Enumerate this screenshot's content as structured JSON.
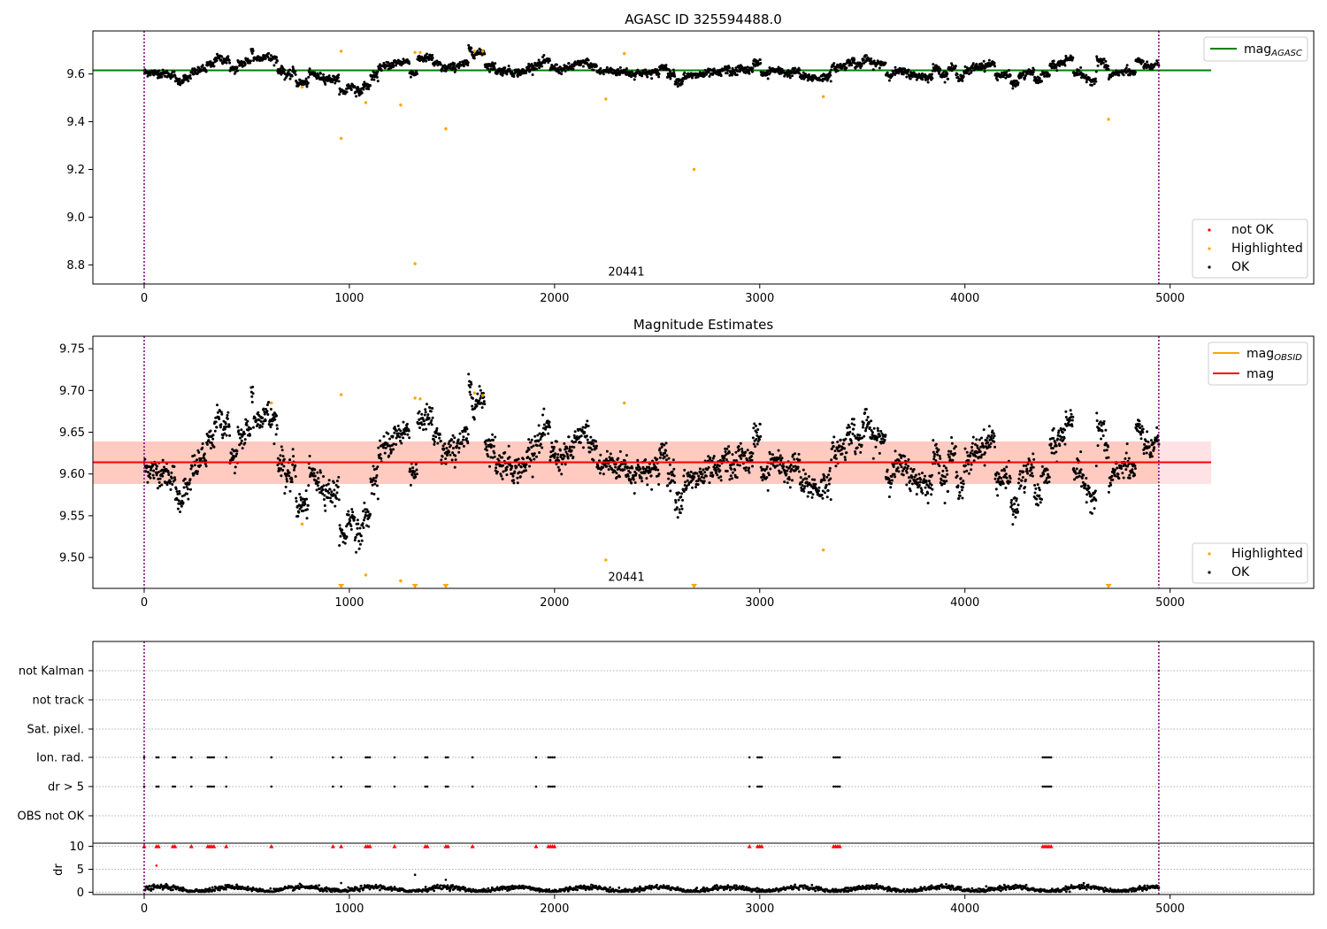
{
  "chart_data": [
    {
      "type": "scatter",
      "title": "AGASC ID 325594488.0",
      "xlim": [
        -250,
        5700
      ],
      "ylim": [
        8.72,
        9.78
      ],
      "xticks": [
        0,
        1000,
        2000,
        3000,
        4000,
        5000
      ],
      "yticks": [
        8.8,
        9.0,
        9.2,
        9.4,
        9.6
      ],
      "annotation": {
        "text": "20441",
        "x": 2350,
        "y": 8.77
      },
      "vlines": [
        0,
        4945
      ],
      "mag_agasc": {
        "value": 9.615,
        "x_range": [
          -250,
          5200
        ]
      },
      "legend_upper": [
        {
          "label": "mag",
          "subscript": "AGASC",
          "color": "#008000"
        }
      ],
      "legend_lower": [
        {
          "label": "not OK",
          "color": "#ff0000"
        },
        {
          "label": "Highlighted",
          "color": "#ffa500"
        },
        {
          "label": "OK",
          "color": "#000000"
        }
      ],
      "highlighted_points": [
        {
          "x": 960,
          "y": 9.695
        },
        {
          "x": 960,
          "y": 9.33
        },
        {
          "x": 1080,
          "y": 9.48
        },
        {
          "x": 1250,
          "y": 9.47
        },
        {
          "x": 1320,
          "y": 8.805
        },
        {
          "x": 1320,
          "y": 9.69
        },
        {
          "x": 1345,
          "y": 9.69
        },
        {
          "x": 1470,
          "y": 9.37
        },
        {
          "x": 1610,
          "y": 9.695
        },
        {
          "x": 1650,
          "y": 9.695
        },
        {
          "x": 2250,
          "y": 9.495
        },
        {
          "x": 2340,
          "y": 9.685
        },
        {
          "x": 2680,
          "y": 9.2
        },
        {
          "x": 3310,
          "y": 9.505
        },
        {
          "x": 4700,
          "y": 9.41
        },
        {
          "x": 770,
          "y": 9.545
        }
      ]
    },
    {
      "type": "scatter",
      "title": "Magnitude Estimates",
      "xlim": [
        -250,
        5700
      ],
      "ylim": [
        9.463,
        9.765
      ],
      "xticks": [
        0,
        1000,
        2000,
        3000,
        4000,
        5000
      ],
      "yticks": [
        9.5,
        9.55,
        9.6,
        9.65,
        9.7,
        9.75
      ],
      "annotation": {
        "text": "20441",
        "x": 2350,
        "y": 9.476
      },
      "vlines": [
        0,
        4945
      ],
      "mag_line": {
        "value": 9.614,
        "x_range": [
          -250,
          5200
        ]
      },
      "band_outer": {
        "low": 9.588,
        "high": 9.639,
        "x_range": [
          -250,
          5200
        ],
        "color": "#ffb6c1"
      },
      "band_inner": {
        "low": 9.588,
        "high": 9.639,
        "x_range": [
          -250,
          4945
        ],
        "color": "#ffa07a"
      },
      "legend_upper": [
        {
          "label": "mag",
          "subscript": "OBSID",
          "color": "#ffa500"
        },
        {
          "label": "mag",
          "color": "#ff0000"
        }
      ],
      "legend_lower": [
        {
          "label": "Highlighted",
          "color": "#ffa500"
        },
        {
          "label": "OK",
          "color": "#000000"
        }
      ],
      "highlighted_points": [
        {
          "x": 960,
          "y": 9.695
        },
        {
          "x": 1080,
          "y": 9.479
        },
        {
          "x": 1250,
          "y": 9.472
        },
        {
          "x": 1320,
          "y": 9.691
        },
        {
          "x": 1345,
          "y": 9.69
        },
        {
          "x": 1610,
          "y": 9.697
        },
        {
          "x": 1650,
          "y": 9.694
        },
        {
          "x": 2250,
          "y": 9.497
        },
        {
          "x": 2340,
          "y": 9.685
        },
        {
          "x": 3310,
          "y": 9.509
        },
        {
          "x": 770,
          "y": 9.54
        },
        {
          "x": 620,
          "y": 9.685
        }
      ],
      "clipped_markers_x": [
        960,
        1320,
        1470,
        2680,
        4700
      ]
    },
    {
      "type": "scatter",
      "title": "",
      "xlim": [
        -250,
        5700
      ],
      "xticks": [
        0,
        1000,
        2000,
        3000,
        4000,
        5000
      ],
      "vlines": [
        0,
        4945
      ],
      "flag_rows": [
        "not Kalman",
        "not track",
        "Sat. pixel.",
        "Ion. rad.",
        "dr > 5",
        "OBS not OK"
      ],
      "flag_events_x": [
        0,
        60,
        70,
        140,
        150,
        230,
        310,
        320,
        330,
        340,
        400,
        620,
        920,
        960,
        1080,
        1090,
        1100,
        1220,
        1370,
        1380,
        1470,
        1480,
        1600,
        1910,
        1970,
        1980,
        1990,
        2000,
        2950,
        2990,
        3000,
        3010,
        3360,
        3370,
        3380,
        3390,
        4380,
        4390,
        4400,
        4410,
        4420
      ],
      "dr_panel": {
        "ylabel": "dr",
        "yticks": [
          0,
          5,
          10
        ],
        "ylim": [
          -0.5,
          10.5
        ],
        "clip_value": 10,
        "outliers": [
          {
            "x": 60,
            "y": 5.8
          },
          {
            "x": 1320,
            "y": 3.8
          },
          {
            "x": 1470,
            "y": 2.7
          },
          {
            "x": 960,
            "y": 2.0
          }
        ]
      }
    }
  ]
}
